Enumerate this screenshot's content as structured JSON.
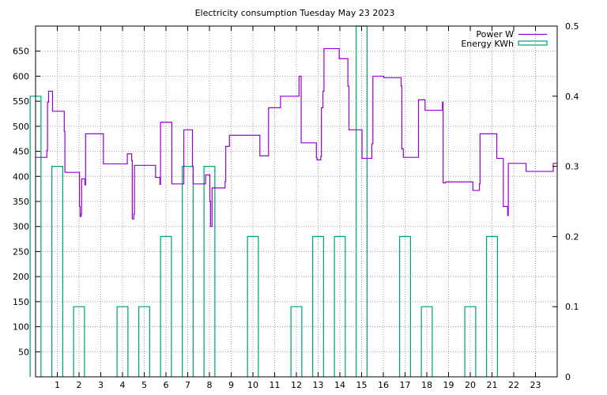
{
  "chart_data": {
    "type": "line",
    "title": "Electricity consumption Tuesday May 23 2023",
    "xlim": [
      0,
      24
    ],
    "ylim_left": [
      0,
      700
    ],
    "ylim_right": [
      0,
      0.5
    ],
    "x_ticks": [
      1,
      2,
      3,
      4,
      5,
      6,
      7,
      8,
      9,
      10,
      11,
      12,
      13,
      14,
      15,
      16,
      17,
      18,
      19,
      20,
      21,
      22,
      23
    ],
    "y_ticks_left": [
      50,
      100,
      150,
      200,
      250,
      300,
      350,
      400,
      450,
      500,
      550,
      600,
      650
    ],
    "y_ticks_right": [
      0,
      0.1,
      0.2,
      0.3,
      0.4,
      0.5
    ],
    "grid": true,
    "legend_position": "top-right",
    "colors": {
      "power": "#9400d3",
      "energy": "#009e73"
    },
    "series": [
      {
        "name": "Power W",
        "axis": "left",
        "style": "step",
        "points": [
          [
            0.0,
            438
          ],
          [
            0.5,
            438
          ],
          [
            0.52,
            452
          ],
          [
            0.55,
            548
          ],
          [
            0.6,
            570
          ],
          [
            0.75,
            570
          ],
          [
            0.78,
            530
          ],
          [
            1.3,
            530
          ],
          [
            1.32,
            490
          ],
          [
            1.35,
            408
          ],
          [
            2.0,
            408
          ],
          [
            2.02,
            340
          ],
          [
            2.05,
            320
          ],
          [
            2.1,
            325
          ],
          [
            2.12,
            395
          ],
          [
            2.25,
            395
          ],
          [
            2.27,
            383
          ],
          [
            2.3,
            485
          ],
          [
            3.1,
            485
          ],
          [
            3.12,
            425
          ],
          [
            4.2,
            425
          ],
          [
            4.22,
            445
          ],
          [
            4.4,
            445
          ],
          [
            4.42,
            432
          ],
          [
            4.45,
            315
          ],
          [
            4.5,
            315
          ],
          [
            4.52,
            325
          ],
          [
            4.55,
            422
          ],
          [
            5.5,
            422
          ],
          [
            5.52,
            398
          ],
          [
            5.7,
            398
          ],
          [
            5.72,
            384
          ],
          [
            5.75,
            508
          ],
          [
            6.25,
            508
          ],
          [
            6.27,
            385
          ],
          [
            6.8,
            385
          ],
          [
            6.82,
            493
          ],
          [
            7.2,
            493
          ],
          [
            7.22,
            420
          ],
          [
            7.25,
            385
          ],
          [
            7.8,
            385
          ],
          [
            7.82,
            403
          ],
          [
            8.0,
            403
          ],
          [
            8.02,
            350
          ],
          [
            8.05,
            300
          ],
          [
            8.1,
            300
          ],
          [
            8.12,
            377
          ],
          [
            8.7,
            377
          ],
          [
            8.72,
            390
          ],
          [
            8.75,
            460
          ],
          [
            8.9,
            460
          ],
          [
            8.92,
            482
          ],
          [
            10.3,
            482
          ],
          [
            10.32,
            441
          ],
          [
            10.7,
            441
          ],
          [
            10.72,
            537
          ],
          [
            11.25,
            537
          ],
          [
            11.27,
            560
          ],
          [
            12.1,
            560
          ],
          [
            12.12,
            600
          ],
          [
            12.2,
            600
          ],
          [
            12.22,
            467
          ],
          [
            12.9,
            467
          ],
          [
            12.92,
            437
          ],
          [
            12.95,
            433
          ],
          [
            13.1,
            433
          ],
          [
            13.12,
            440
          ],
          [
            13.15,
            537
          ],
          [
            13.2,
            537
          ],
          [
            13.22,
            570
          ],
          [
            13.25,
            570
          ],
          [
            13.27,
            655
          ],
          [
            13.95,
            655
          ],
          [
            13.97,
            635
          ],
          [
            14.35,
            635
          ],
          [
            14.37,
            580
          ],
          [
            14.4,
            580
          ],
          [
            14.42,
            493
          ],
          [
            15.0,
            493
          ],
          [
            15.02,
            436
          ],
          [
            15.45,
            436
          ],
          [
            15.47,
            465
          ],
          [
            15.5,
            465
          ],
          [
            15.52,
            600
          ],
          [
            16.0,
            600
          ],
          [
            16.02,
            597
          ],
          [
            16.8,
            597
          ],
          [
            16.82,
            580
          ],
          [
            16.85,
            455
          ],
          [
            16.9,
            455
          ],
          [
            16.92,
            438
          ],
          [
            17.6,
            438
          ],
          [
            17.62,
            553
          ],
          [
            17.9,
            553
          ],
          [
            17.92,
            532
          ],
          [
            18.7,
            532
          ],
          [
            18.72,
            548
          ],
          [
            18.75,
            387
          ],
          [
            18.85,
            387
          ],
          [
            18.87,
            389
          ],
          [
            20.1,
            389
          ],
          [
            20.12,
            372
          ],
          [
            20.4,
            372
          ],
          [
            20.42,
            385
          ],
          [
            20.45,
            485
          ],
          [
            21.2,
            485
          ],
          [
            21.22,
            436
          ],
          [
            21.5,
            436
          ],
          [
            21.52,
            340
          ],
          [
            21.7,
            340
          ],
          [
            21.72,
            322
          ],
          [
            21.75,
            426
          ],
          [
            22.55,
            426
          ],
          [
            22.57,
            410
          ],
          [
            23.8,
            410
          ],
          [
            23.82,
            426
          ],
          [
            24.0,
            426
          ]
        ]
      },
      {
        "name": "Energy KWh",
        "axis": "right",
        "style": "boxes",
        "values": [
          0.4,
          0.3,
          0.1,
          0,
          0.1,
          0.1,
          0.2,
          0.3,
          0.3,
          0,
          0.2,
          0,
          0.1,
          0.2,
          0.2,
          0.5,
          0,
          0.2,
          0.1,
          0,
          0.1,
          0.2,
          0,
          0
        ]
      }
    ]
  }
}
